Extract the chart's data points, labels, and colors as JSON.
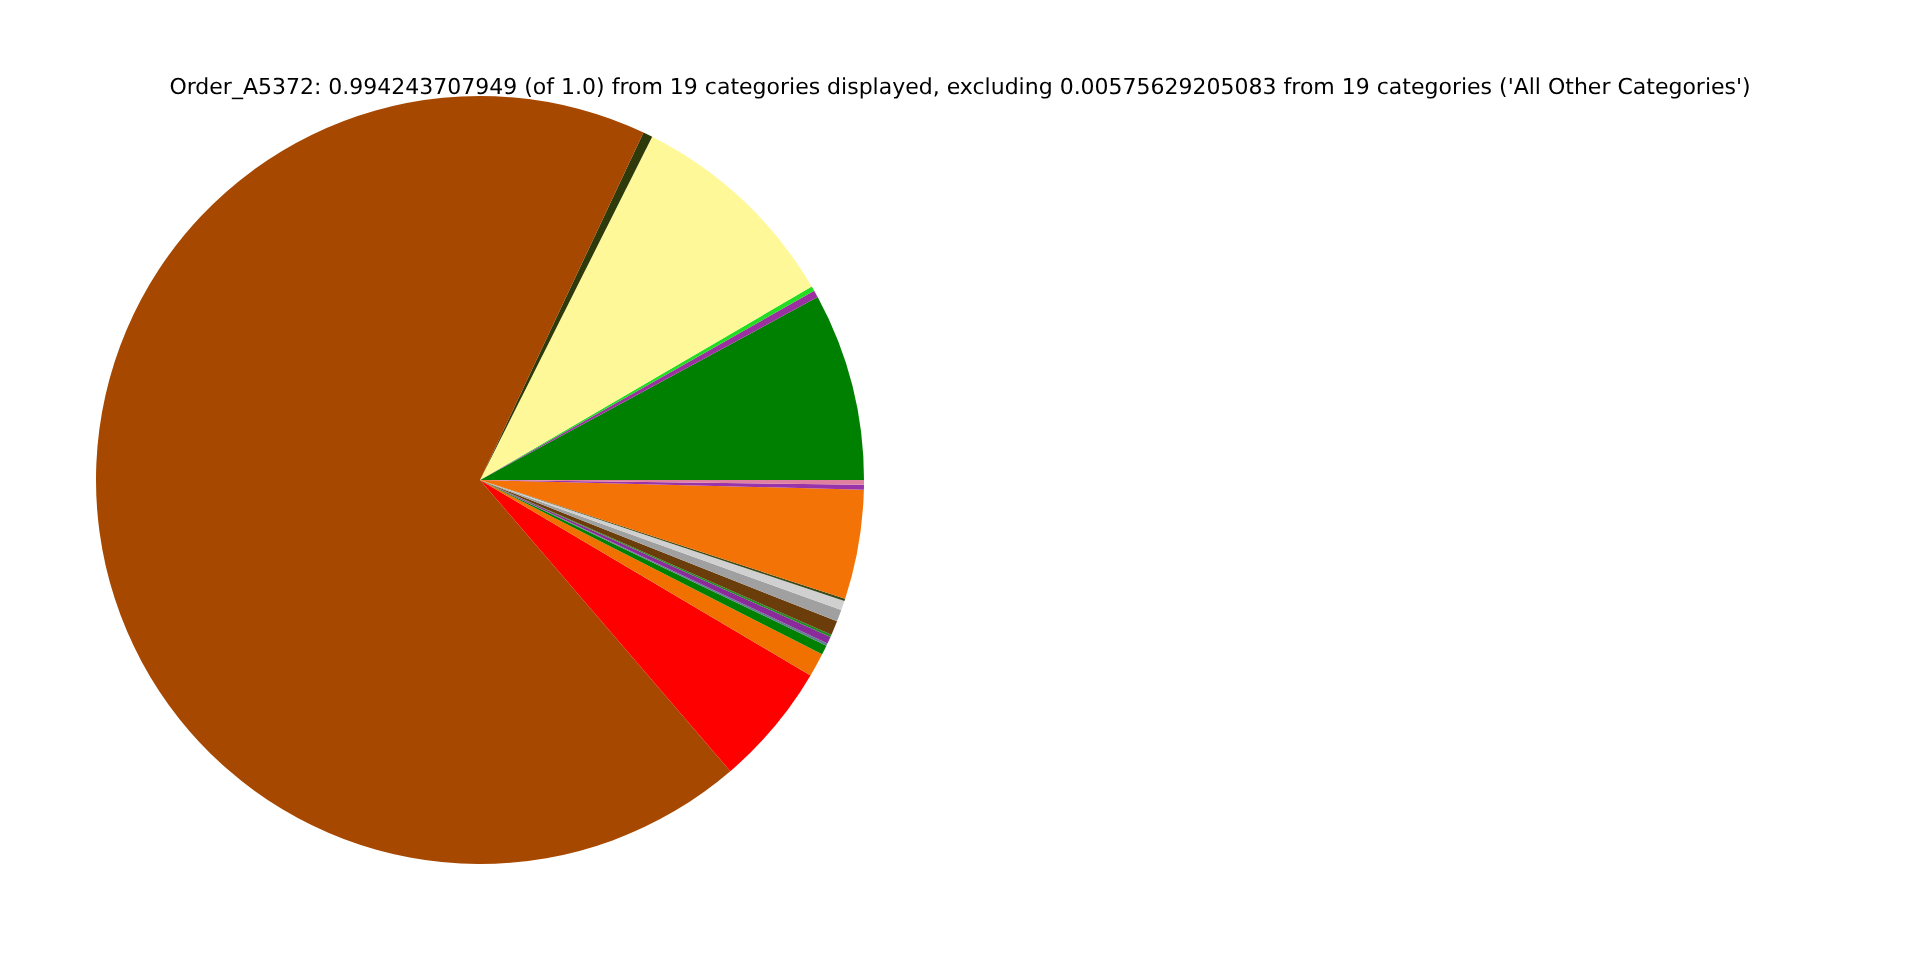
{
  "chart_data": {
    "type": "pie",
    "title": "Order_A5372: 0.994243707949 (of 1.0) from 19 categories displayed, excluding 0.00575629205083 from 19 categories ('All Other Categories')",
    "categories": [
      null,
      null,
      null,
      null,
      null,
      null,
      null,
      null,
      null,
      null,
      null,
      null,
      null,
      null,
      null,
      null,
      null,
      null,
      null
    ],
    "values": [
      7.9,
      0.3,
      0.2,
      9.2,
      0.4,
      68.3,
      5.2,
      1.0,
      0.4,
      0.1,
      0.3,
      0.1,
      0.6,
      0.5,
      0.4,
      0.1,
      4.6,
      0.2,
      0.2
    ],
    "colors": [
      "#008000",
      "#9b30a0",
      "#22dd22",
      "#fff899",
      "#2e3a0a",
      "#a64800",
      "#ff0000",
      "#f07000",
      "#008000",
      "#5f7f8f",
      "#8b2b9b",
      "#228b22",
      "#6b3d0a",
      "#a0a0a0",
      "#d0d0d0",
      "#3a4a1a",
      "#f47306",
      "#9933aa",
      "#e080a0"
    ]
  }
}
